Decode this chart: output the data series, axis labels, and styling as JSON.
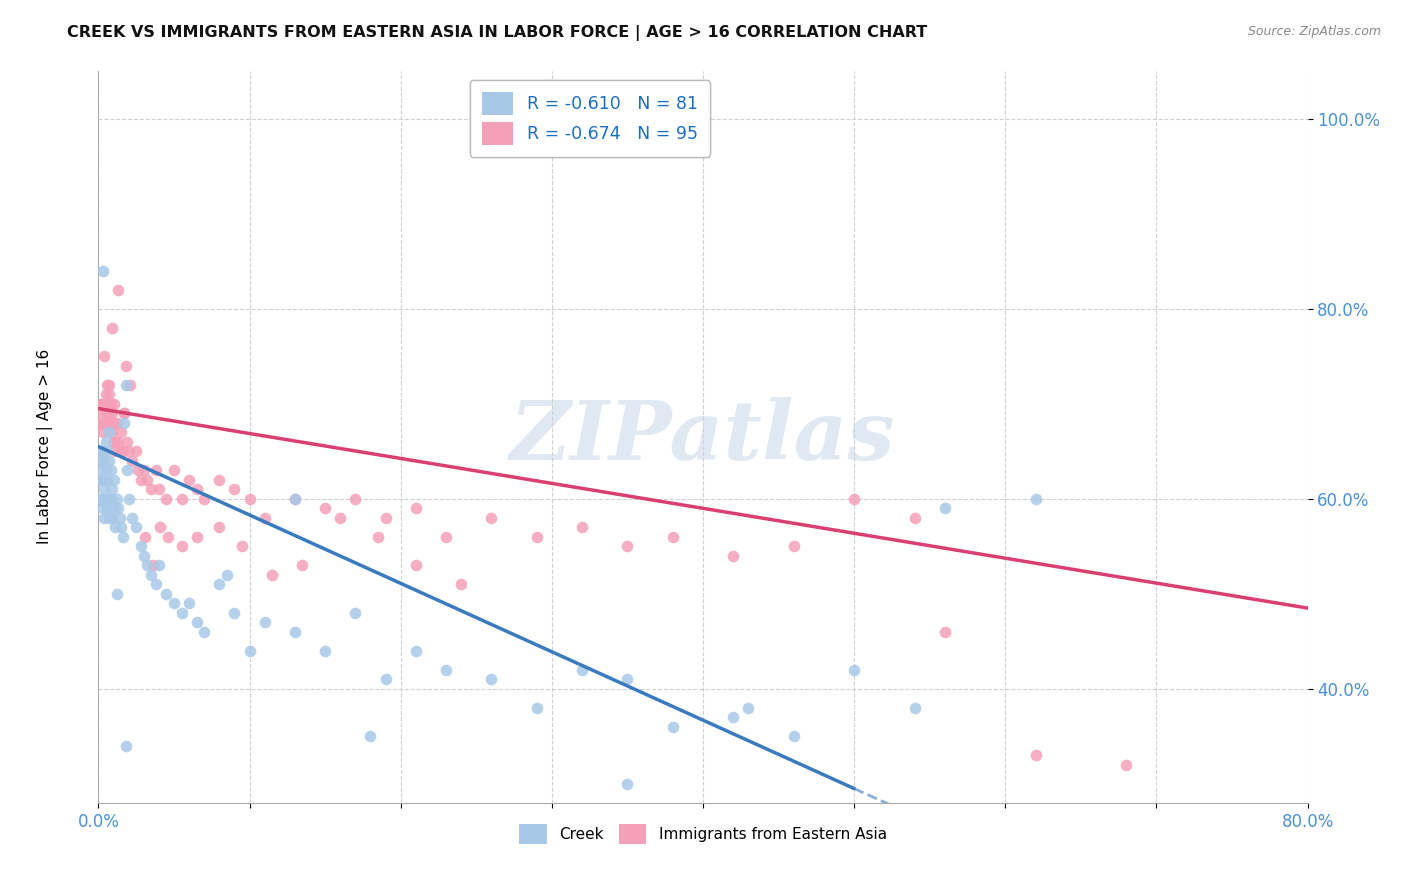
{
  "title": "CREEK VS IMMIGRANTS FROM EASTERN ASIA IN LABOR FORCE | AGE > 16 CORRELATION CHART",
  "source": "Source: ZipAtlas.com",
  "ylabel_label": "In Labor Force | Age > 16",
  "xlim": [
    0.0,
    0.8
  ],
  "ylim": [
    0.28,
    1.05
  ],
  "creek_color": "#a8c8e8",
  "immigrant_color": "#f4a0b8",
  "creek_line_color": "#3a7abf",
  "immigrant_line_color": "#d94070",
  "creek_r": -0.61,
  "creek_n": 81,
  "immigrant_r": -0.674,
  "immigrant_n": 95,
  "legend_text_color": "#1a6fc4",
  "watermark": "ZIPatlas",
  "creek_line": [
    [
      0.0,
      0.655
    ],
    [
      0.5,
      0.295
    ]
  ],
  "creek_dash_line": [
    [
      0.5,
      0.295
    ],
    [
      0.78,
      0.094
    ]
  ],
  "immigrant_line": [
    [
      0.0,
      0.695
    ],
    [
      0.8,
      0.485
    ]
  ],
  "creek_x": [
    0.001,
    0.001,
    0.001,
    0.002,
    0.002,
    0.002,
    0.003,
    0.003,
    0.003,
    0.004,
    0.004,
    0.004,
    0.005,
    0.005,
    0.005,
    0.006,
    0.006,
    0.006,
    0.007,
    0.007,
    0.007,
    0.008,
    0.008,
    0.009,
    0.009,
    0.01,
    0.01,
    0.011,
    0.012,
    0.013,
    0.014,
    0.015,
    0.016,
    0.017,
    0.018,
    0.019,
    0.02,
    0.022,
    0.025,
    0.028,
    0.03,
    0.032,
    0.035,
    0.038,
    0.04,
    0.045,
    0.05,
    0.055,
    0.06,
    0.065,
    0.07,
    0.08,
    0.09,
    0.1,
    0.11,
    0.13,
    0.15,
    0.17,
    0.19,
    0.21,
    0.23,
    0.26,
    0.29,
    0.32,
    0.35,
    0.38,
    0.42,
    0.46,
    0.5,
    0.54,
    0.13,
    0.085,
    0.003,
    0.007,
    0.012,
    0.018,
    0.35,
    0.18,
    0.43,
    0.56,
    0.62
  ],
  "creek_y": [
    0.65,
    0.63,
    0.6,
    0.64,
    0.62,
    0.6,
    0.65,
    0.62,
    0.59,
    0.64,
    0.61,
    0.58,
    0.66,
    0.63,
    0.6,
    0.65,
    0.62,
    0.59,
    0.67,
    0.64,
    0.6,
    0.63,
    0.6,
    0.61,
    0.58,
    0.62,
    0.59,
    0.57,
    0.6,
    0.59,
    0.58,
    0.57,
    0.56,
    0.68,
    0.72,
    0.63,
    0.6,
    0.58,
    0.57,
    0.55,
    0.54,
    0.53,
    0.52,
    0.51,
    0.53,
    0.5,
    0.49,
    0.48,
    0.49,
    0.47,
    0.46,
    0.51,
    0.48,
    0.44,
    0.47,
    0.46,
    0.44,
    0.48,
    0.41,
    0.44,
    0.42,
    0.41,
    0.38,
    0.42,
    0.41,
    0.36,
    0.37,
    0.35,
    0.42,
    0.38,
    0.6,
    0.52,
    0.84,
    0.58,
    0.5,
    0.34,
    0.3,
    0.35,
    0.38,
    0.59,
    0.6
  ],
  "immigrant_x": [
    0.001,
    0.001,
    0.002,
    0.002,
    0.003,
    0.003,
    0.003,
    0.004,
    0.004,
    0.004,
    0.005,
    0.005,
    0.005,
    0.006,
    0.006,
    0.006,
    0.007,
    0.007,
    0.007,
    0.008,
    0.008,
    0.008,
    0.009,
    0.009,
    0.01,
    0.01,
    0.01,
    0.011,
    0.012,
    0.013,
    0.014,
    0.015,
    0.016,
    0.017,
    0.018,
    0.019,
    0.02,
    0.022,
    0.025,
    0.028,
    0.03,
    0.032,
    0.035,
    0.038,
    0.04,
    0.045,
    0.05,
    0.055,
    0.06,
    0.065,
    0.07,
    0.08,
    0.09,
    0.1,
    0.11,
    0.13,
    0.15,
    0.17,
    0.19,
    0.21,
    0.23,
    0.26,
    0.29,
    0.32,
    0.35,
    0.38,
    0.42,
    0.46,
    0.5,
    0.54,
    0.004,
    0.006,
    0.009,
    0.011,
    0.013,
    0.017,
    0.021,
    0.026,
    0.031,
    0.036,
    0.041,
    0.046,
    0.055,
    0.065,
    0.08,
    0.095,
    0.115,
    0.135,
    0.16,
    0.185,
    0.21,
    0.24,
    0.56,
    0.62,
    0.68
  ],
  "immigrant_y": [
    0.68,
    0.7,
    0.7,
    0.68,
    0.69,
    0.67,
    0.7,
    0.7,
    0.68,
    0.7,
    0.71,
    0.69,
    0.7,
    0.7,
    0.68,
    0.7,
    0.71,
    0.69,
    0.72,
    0.68,
    0.7,
    0.68,
    0.69,
    0.67,
    0.68,
    0.66,
    0.7,
    0.65,
    0.68,
    0.66,
    0.65,
    0.67,
    0.65,
    0.69,
    0.74,
    0.66,
    0.65,
    0.64,
    0.65,
    0.62,
    0.63,
    0.62,
    0.61,
    0.63,
    0.61,
    0.6,
    0.63,
    0.6,
    0.62,
    0.61,
    0.6,
    0.62,
    0.61,
    0.6,
    0.58,
    0.6,
    0.59,
    0.6,
    0.58,
    0.59,
    0.56,
    0.58,
    0.56,
    0.57,
    0.55,
    0.56,
    0.54,
    0.55,
    0.6,
    0.58,
    0.75,
    0.72,
    0.78,
    0.66,
    0.82,
    0.69,
    0.72,
    0.63,
    0.56,
    0.53,
    0.57,
    0.56,
    0.55,
    0.56,
    0.57,
    0.55,
    0.52,
    0.53,
    0.58,
    0.56,
    0.53,
    0.51,
    0.46,
    0.33,
    0.32
  ]
}
